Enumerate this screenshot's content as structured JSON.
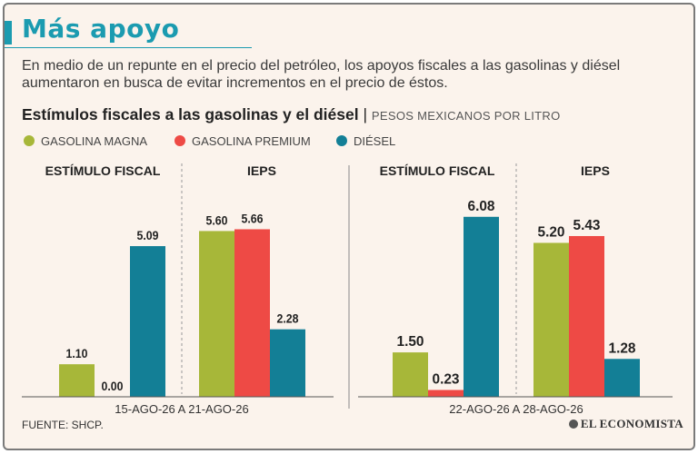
{
  "title": "Más apoyo",
  "subtitle": "En medio de un repunte en el precio del petróleo, los apoyos fiscales a las gasolinas y diésel aumentaron en busca de evitar incrementos en el precio de éstos.",
  "chart_heading": "Estímulos fiscales a las gasolinas y el diésel",
  "chart_separator": "|",
  "chart_unit": "PESOS MEXICANOS POR LITRO",
  "source": "FUENTE: SHCP.",
  "publisher": "EL ECONOMISTA",
  "colors": {
    "magna": "#a7b739",
    "premium": "#ee4a45",
    "diesel": "#137f96",
    "accent": "#1b9bb0"
  },
  "chart_data": {
    "type": "bar",
    "legend": {
      "placement": "top-left",
      "items": [
        {
          "name": "GASOLINA MAGNA",
          "color": "#a7b739"
        },
        {
          "name": "GASOLINA PREMIUM",
          "color": "#ee4a45"
        },
        {
          "name": "DIÉSEL",
          "color": "#137f96"
        }
      ]
    },
    "grid": false,
    "ylim": [
      0,
      6.5
    ],
    "panels": [
      {
        "period": "15-AGO-26 A 21-AGO-26",
        "groups": [
          {
            "label": "ESTÍMULO FISCAL",
            "values": [
              1.1,
              0.0,
              5.09
            ],
            "labels": [
              "1.10",
              "0.00",
              "5.09"
            ]
          },
          {
            "label": "IEPS",
            "values": [
              5.6,
              5.66,
              2.28
            ],
            "labels": [
              "5.60",
              "5.66",
              "2.28"
            ]
          }
        ]
      },
      {
        "period": "22-AGO-26 A 28-AGO-26",
        "groups": [
          {
            "label": "ESTÍMULO FISCAL",
            "values": [
              1.5,
              0.23,
              6.08
            ],
            "labels": [
              "1.50",
              "0.23",
              "6.08"
            ]
          },
          {
            "label": "IEPS",
            "values": [
              5.2,
              5.43,
              1.28
            ],
            "labels": [
              "5.20",
              "5.43",
              "1.28"
            ]
          }
        ]
      }
    ]
  }
}
